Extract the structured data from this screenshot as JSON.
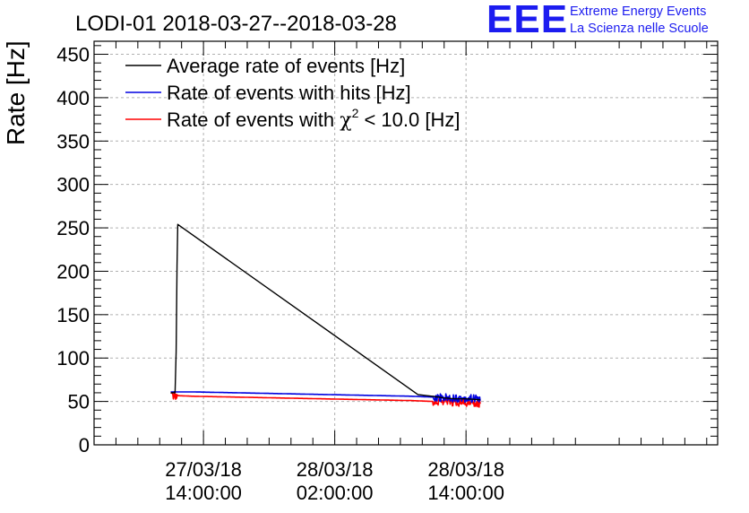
{
  "chart_data": {
    "type": "line",
    "title": "LODI-01 2018-03-27--2018-03-28",
    "ylabel": "Rate [Hz]",
    "xlabel": "",
    "ylim": [
      0,
      465
    ],
    "x_range_hours": [
      -10,
      47
    ],
    "yticks": [
      0,
      50,
      100,
      150,
      200,
      250,
      300,
      350,
      400,
      450
    ],
    "xticks": [
      {
        "h": 0,
        "date": "27/03/18",
        "time": "14:00:00"
      },
      {
        "h": 12,
        "date": "28/03/18",
        "time": "02:00:00"
      },
      {
        "h": 24,
        "date": "28/03/18",
        "time": "14:00:00"
      }
    ],
    "grid": true,
    "legend_position": "top-left",
    "series": [
      {
        "name": "Average rate of events [Hz]",
        "color": "#000000",
        "points": [
          [
            -3.0,
            60
          ],
          [
            -2.6,
            60
          ],
          [
            -2.5,
            107
          ],
          [
            -2.42,
            207
          ],
          [
            -2.35,
            254
          ],
          [
            19.6,
            58
          ],
          [
            20.9,
            56
          ],
          [
            22.0,
            54
          ],
          [
            23.0,
            53
          ],
          [
            24.0,
            53
          ],
          [
            25.3,
            52
          ]
        ]
      },
      {
        "name": "Rate of events with hits [Hz]",
        "color": "#0000e0",
        "noisy_from": 21.0,
        "points": [
          [
            -3.0,
            61
          ],
          [
            -1.0,
            61
          ],
          [
            3.0,
            60
          ],
          [
            7.0,
            59
          ],
          [
            11.0,
            58
          ],
          [
            15.0,
            57
          ],
          [
            19.0,
            56
          ],
          [
            21.0,
            55
          ],
          [
            23.0,
            54
          ],
          [
            25.3,
            53
          ]
        ]
      },
      {
        "name_prefix": "Rate of events with ",
        "name_symbol": "χ",
        "name_sup": "2",
        "name_suffix": " < 10.0 [Hz]",
        "color": "#ff0000",
        "noisy_to": -2.4,
        "noisy_from": 21.0,
        "points": [
          [
            -3.0,
            57
          ],
          [
            -1.0,
            56
          ],
          [
            3.0,
            55
          ],
          [
            7.0,
            54
          ],
          [
            11.0,
            53
          ],
          [
            15.0,
            52
          ],
          [
            19.0,
            51
          ],
          [
            21.0,
            50
          ],
          [
            23.0,
            49
          ],
          [
            25.3,
            48
          ]
        ]
      }
    ]
  },
  "logo": {
    "letters": "EEE",
    "line1": "Extreme Energy Events",
    "line2": "La Scienza nelle Scuole"
  }
}
